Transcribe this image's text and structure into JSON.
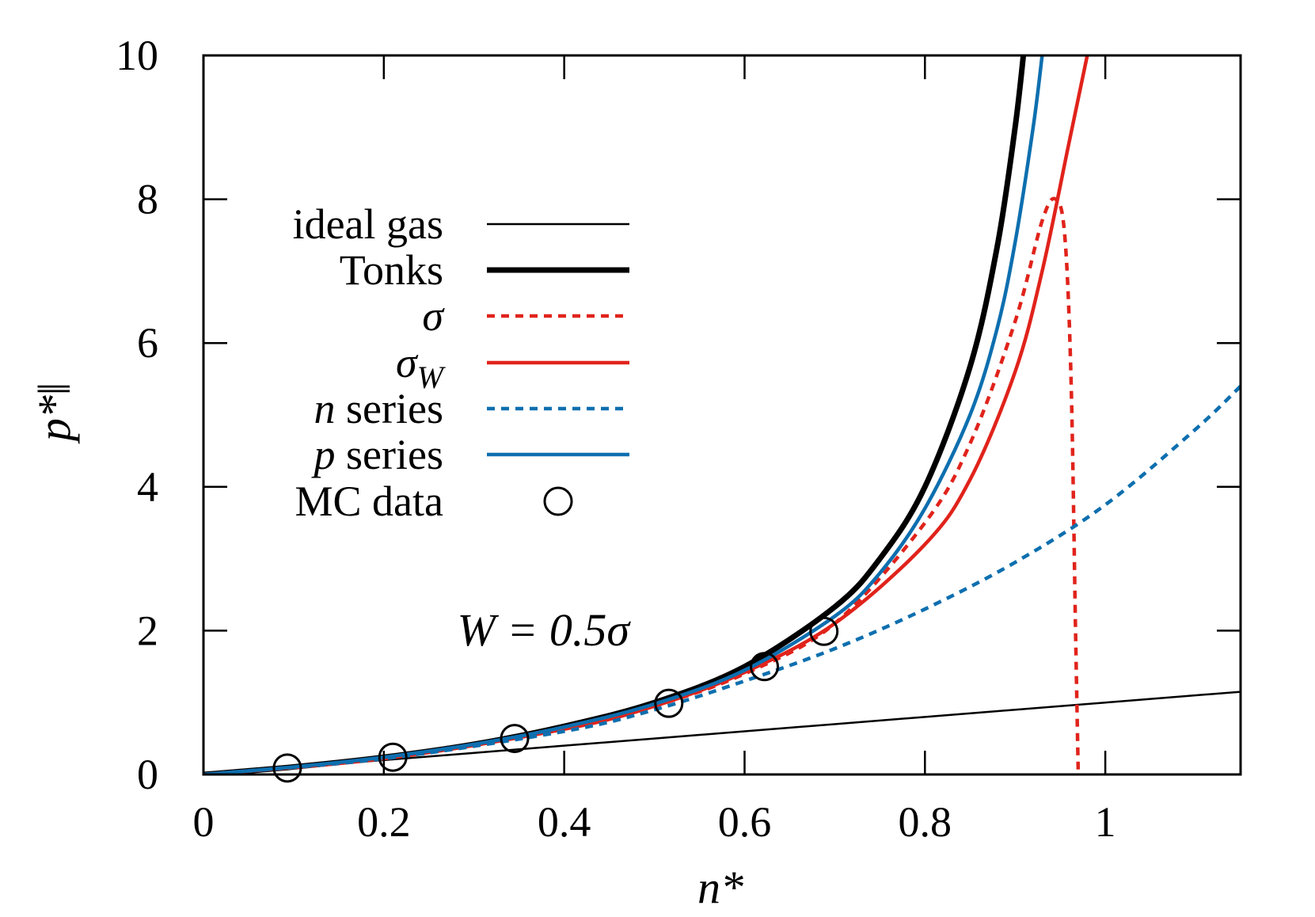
{
  "chart_data": {
    "type": "line",
    "xlabel": "n*",
    "ylabel": "p*‖",
    "xlim": [
      0,
      1.15
    ],
    "ylim": [
      0,
      10
    ],
    "x_ticks": [
      0,
      0.2,
      0.4,
      0.6,
      0.8,
      1
    ],
    "x_tick_labels": [
      "0",
      "0.2",
      "0.4",
      "0.6",
      "0.8",
      "1"
    ],
    "y_ticks": [
      0,
      2,
      4,
      6,
      8,
      10
    ],
    "y_tick_labels": [
      "0",
      "2",
      "4",
      "6",
      "8",
      "10"
    ],
    "annotation": "W = 0.5σ",
    "legend_position": "upper-left",
    "series": [
      {
        "name": "ideal gas",
        "label_parts": [
          "ideal gas"
        ],
        "color": "#000000",
        "width": 2.5,
        "dash": "",
        "x": [
          0,
          0.2,
          0.4,
          0.6,
          0.8,
          1.0,
          1.15
        ],
        "y": [
          0,
          0.2,
          0.4,
          0.6,
          0.8,
          1.0,
          1.15
        ]
      },
      {
        "name": "Tonks",
        "label_parts": [
          "Tonks"
        ],
        "color": "#000000",
        "width": 7,
        "dash": "",
        "x": [
          0,
          0.1,
          0.2,
          0.3,
          0.4,
          0.5,
          0.6,
          0.7,
          0.75,
          0.8,
          0.85,
          0.88,
          0.9,
          0.91
        ],
        "y": [
          0,
          0.105,
          0.24,
          0.42,
          0.67,
          1.0,
          1.5,
          2.33,
          3.0,
          4.0,
          5.67,
          7.33,
          9.0,
          10.1
        ]
      },
      {
        "name": "σ (dotted)",
        "label_parts": [
          "σ"
        ],
        "color": "#e0231b",
        "width": 4.5,
        "dash": "10,8",
        "x": [
          0,
          0.2,
          0.4,
          0.5,
          0.6,
          0.7,
          0.8,
          0.85,
          0.9,
          0.93,
          0.945,
          0.955,
          0.962,
          0.967,
          0.97
        ],
        "y": [
          0,
          0.22,
          0.62,
          0.95,
          1.4,
          2.1,
          3.5,
          4.6,
          6.3,
          7.7,
          8.0,
          7.5,
          5.5,
          2.0,
          0.0
        ]
      },
      {
        "name": "σ_W",
        "label_parts": [
          "σ",
          "W"
        ],
        "color": "#e0231b",
        "width": 4.5,
        "dash": "",
        "x": [
          0,
          0.2,
          0.4,
          0.5,
          0.6,
          0.7,
          0.8,
          0.85,
          0.9,
          0.93,
          0.96,
          0.98
        ],
        "y": [
          0,
          0.22,
          0.63,
          0.95,
          1.42,
          2.1,
          3.2,
          4.1,
          5.6,
          7.0,
          8.8,
          10.0
        ]
      },
      {
        "name": "n series",
        "label_parts": [
          "n",
          " series"
        ],
        "color": "#0e6faf",
        "width": 4.5,
        "dash": "10,8",
        "x": [
          0,
          0.2,
          0.4,
          0.5,
          0.6,
          0.7,
          0.8,
          0.9,
          1.0,
          1.1,
          1.15
        ],
        "y": [
          0,
          0.22,
          0.6,
          0.9,
          1.3,
          1.75,
          2.3,
          2.95,
          3.75,
          4.8,
          5.4
        ]
      },
      {
        "name": "p series",
        "label_parts": [
          "p",
          " series"
        ],
        "color": "#0e6faf",
        "width": 4.5,
        "dash": "",
        "x": [
          0,
          0.1,
          0.2,
          0.3,
          0.4,
          0.5,
          0.6,
          0.7,
          0.75,
          0.8,
          0.85,
          0.88,
          0.9,
          0.92,
          0.93
        ],
        "y": [
          0,
          0.105,
          0.24,
          0.42,
          0.66,
          0.98,
          1.45,
          2.2,
          2.8,
          3.7,
          5.0,
          6.2,
          7.4,
          9.0,
          10.0
        ]
      }
    ],
    "scatter": {
      "name": "MC data",
      "label_parts": [
        "MC data"
      ],
      "color": "#000000",
      "x": [
        0.093,
        0.21,
        0.345,
        0.516,
        0.622,
        0.688
      ],
      "y": [
        0.09,
        0.24,
        0.5,
        0.99,
        1.5,
        1.99
      ]
    }
  }
}
